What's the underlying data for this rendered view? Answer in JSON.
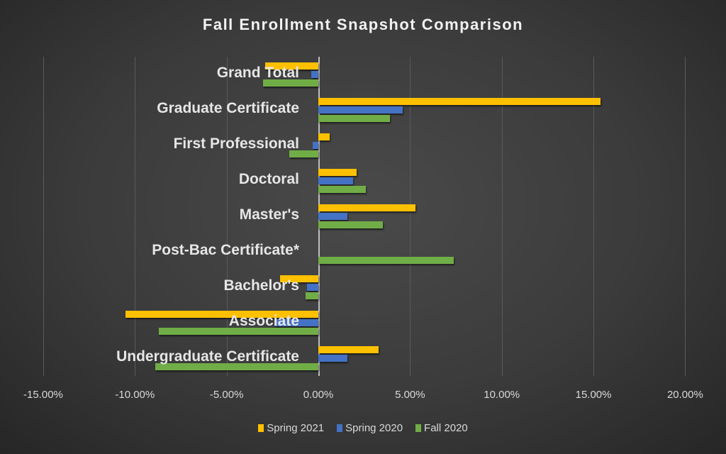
{
  "chart_data": {
    "type": "bar",
    "orientation": "horizontal",
    "title": "Fall Enrollment Snapshot Comparison",
    "xlabel": "",
    "ylabel": "",
    "xlim": [
      -0.15,
      0.2
    ],
    "x_ticks": [
      "-15.00%",
      "-10.00%",
      "-5.00%",
      "0.00%",
      "5.00%",
      "10.00%",
      "15.00%",
      "20.00%"
    ],
    "grid": true,
    "legend_position": "bottom",
    "categories": [
      "Grand Total",
      "Graduate Certificate",
      "First Professional",
      "Doctoral",
      "Master's",
      "Post-Bac Certificate*",
      "Bachelor's",
      "Associate",
      "Undergraduate Certificate"
    ],
    "series": [
      {
        "name": "Spring 2021",
        "color": "#ffc000",
        "values": [
          -2.9,
          15.4,
          0.6,
          2.1,
          5.3,
          0.0,
          -2.1,
          -10.5,
          3.3
        ]
      },
      {
        "name": "Spring 2020",
        "color": "#4472c4",
        "values": [
          -0.4,
          4.6,
          -0.3,
          1.9,
          1.6,
          0.0,
          -0.6,
          -2.4,
          1.6
        ]
      },
      {
        "name": "Fall 2020",
        "color": "#70ad47",
        "values": [
          -3.0,
          3.9,
          -1.6,
          2.6,
          3.5,
          7.4,
          -0.7,
          -8.7,
          -8.9
        ]
      }
    ],
    "units": "percent"
  },
  "legend": {
    "items": [
      {
        "label": "Spring 2021",
        "color": "#ffc000"
      },
      {
        "label": "Spring 2020",
        "color": "#4472c4"
      },
      {
        "label": "Fall 2020",
        "color": "#70ad47"
      }
    ]
  }
}
